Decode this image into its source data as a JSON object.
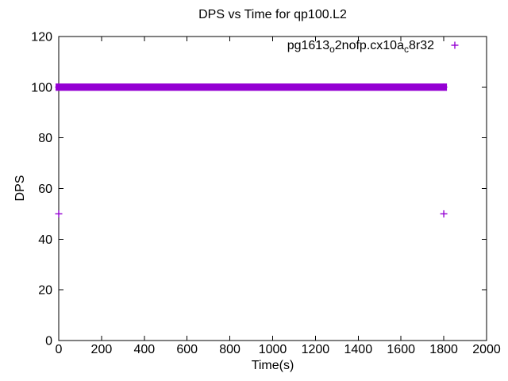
{
  "chart_data": {
    "type": "scatter",
    "title": "DPS vs Time for qp100.L2",
    "xlabel": "Time(s)",
    "ylabel": "DPS",
    "xlim": [
      0,
      2000
    ],
    "ylim": [
      0,
      120
    ],
    "x_ticks": [
      "0",
      "200",
      "400",
      "600",
      "800",
      "1000",
      "1200",
      "1400",
      "1600",
      "1800",
      "2000"
    ],
    "y_ticks": [
      "0",
      "20",
      "40",
      "60",
      "80",
      "100",
      "120"
    ],
    "grid": false,
    "mirrored_ticks": true,
    "axis_color": "#000000",
    "text_color": "#000000",
    "legend": {
      "position": "top-right-inside",
      "entries": [
        {
          "raw_label": "pg1613_o2nofp.cx10a_c8r32",
          "display_parts": [
            {
              "text": "pg1613",
              "sub": false
            },
            {
              "text": "o",
              "sub": true
            },
            {
              "text": "2nofp.cx10a",
              "sub": false
            },
            {
              "text": "c",
              "sub": true
            },
            {
              "text": "8r32",
              "sub": false
            }
          ],
          "marker": "+",
          "color": "#9400d3"
        }
      ]
    },
    "series": [
      {
        "name": "pg1613_o2nofp.cx10a_c8r32",
        "marker": "+",
        "color": "#9400d3",
        "description": "Dense horizontal band of + markers: sustained DPS of ~99-100 from t=0s to t=1800s, plus isolated outlier points at DPS=50",
        "band": {
          "x_start": 0,
          "x_end": 1800,
          "y_center": 100,
          "y_half_range": 1.45
        },
        "points": [
          [
            0,
            50
          ],
          [
            1800,
            50
          ]
        ]
      }
    ]
  }
}
